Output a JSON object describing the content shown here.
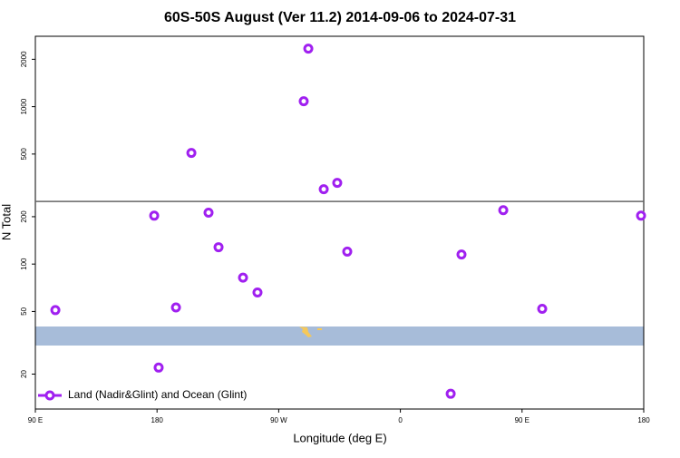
{
  "chart_data": {
    "type": "scatter",
    "title": "60S-50S August (Ver 11.2)   2014-09-06 to 2024-07-31",
    "x_label": "Longitude (deg E)",
    "y_label": "N Total",
    "xlim": [
      90,
      540
    ],
    "xticks": [
      {
        "value": 90,
        "label": "90 E"
      },
      180,
      {
        "value": 270,
        "label": "90 W"
      },
      {
        "value": 360,
        "label": "0"
      },
      {
        "value": 450,
        "label": "90 E"
      },
      {
        "value": 540,
        "label": "180"
      }
    ],
    "ylim": [
      12,
      2800
    ],
    "ylog": true,
    "yticks": [
      20,
      50,
      100,
      200,
      500,
      1000,
      2000
    ],
    "hline": 250,
    "legend": "bottom-left",
    "series": [
      {
        "name": "Land (Nadir&Glint) and Ocean (Glint)",
        "color": "#a020f0",
        "x": [
          104.8,
          177.9,
          181.2,
          194.0,
          205.4,
          218.1,
          225.5,
          243.6,
          254.3,
          288.5,
          291.9,
          303.3,
          313.3,
          320.7,
          397.2,
          405.2,
          436.1,
          464.9,
          538.0
        ],
        "values": [
          51,
          203,
          22,
          53,
          508,
          212,
          128,
          82,
          66,
          1083,
          2338,
          299,
          328,
          120,
          15,
          115,
          220,
          52,
          203
        ]
      }
    ]
  }
}
